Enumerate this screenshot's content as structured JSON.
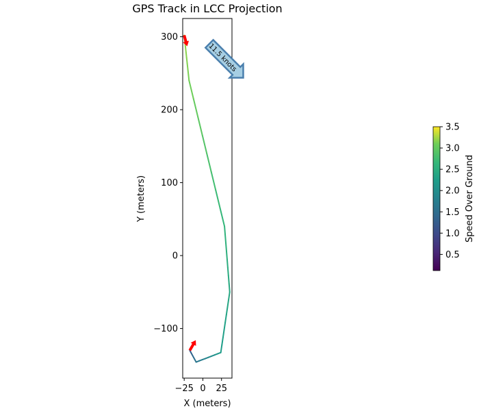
{
  "chart_data": {
    "type": "line",
    "title": "GPS Track in LCC Projection",
    "xlabel": "X (meters)",
    "ylabel": "Y (meters)",
    "xlim": [
      -27,
      39
    ],
    "ylim": [
      -168,
      325
    ],
    "xticks": [
      -25,
      0,
      25
    ],
    "xtick_labels": [
      "−25",
      "0",
      "25"
    ],
    "yticks": [
      -100,
      0,
      100,
      200,
      300
    ],
    "ytick_labels": [
      "−100",
      "0",
      "100",
      "200",
      "300"
    ],
    "grid": false,
    "series": [
      {
        "name": "track",
        "x": [
          -17.5,
          -9,
          24,
          36,
          29,
          -18.5,
          -25
        ],
        "y": [
          -130,
          -146,
          -133,
          -50,
          40,
          240,
          302
        ],
        "speed": [
          1.2,
          1.6,
          2.2,
          2.4,
          2.6,
          3.1,
          3.2
        ]
      }
    ],
    "arrows": [
      {
        "name": "start-arrow",
        "x": -17.5,
        "y": -130,
        "dx": 8,
        "dy": 14,
        "color": "#ff0000"
      },
      {
        "name": "end-arrow",
        "x": -25,
        "y": 302,
        "dx": 4,
        "dy": -15,
        "color": "#ff0000"
      }
    ],
    "annotation": {
      "text": "11.5 knots",
      "fill": "#a6cee3",
      "edge": "#4a7fad"
    },
    "colorbar": {
      "label": "Speed Over Ground",
      "range": [
        0.12,
        3.5
      ],
      "ticks": [
        0.5,
        1.0,
        1.5,
        2.0,
        2.5,
        3.0,
        3.5
      ],
      "tick_labels": [
        "0.5",
        "1.0",
        "1.5",
        "2.0",
        "2.5",
        "3.0",
        "3.5"
      ],
      "colormap": "viridis"
    }
  }
}
